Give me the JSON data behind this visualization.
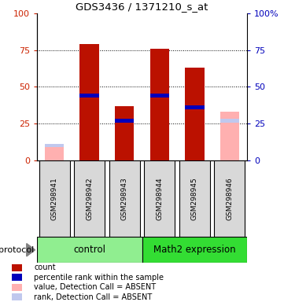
{
  "title": "GDS3436 / 1371210_s_at",
  "samples": [
    "GSM298941",
    "GSM298942",
    "GSM298943",
    "GSM298944",
    "GSM298945",
    "GSM298946"
  ],
  "count_values": [
    null,
    79,
    37,
    76,
    63,
    null
  ],
  "rank_values": [
    null,
    44,
    27,
    44,
    36,
    null
  ],
  "absent_value_values": [
    10,
    null,
    null,
    null,
    null,
    33
  ],
  "absent_rank_values": [
    10,
    null,
    null,
    null,
    null,
    27
  ],
  "group_control_color": "#90ee90",
  "group_math2_color": "#33dd33",
  "ylim": [
    0,
    100
  ],
  "yticks": [
    0,
    25,
    50,
    75,
    100
  ],
  "left_axis_color": "#cc2200",
  "right_axis_color": "#0000bb",
  "count_color": "#bb1100",
  "rank_color": "#0000bb",
  "absent_value_color": "#ffb0b0",
  "absent_rank_color": "#c0c8ee",
  "sample_box_color": "#d8d8d8",
  "legend_items": [
    {
      "color": "#bb1100",
      "label": "count"
    },
    {
      "color": "#0000bb",
      "label": "percentile rank within the sample"
    },
    {
      "color": "#ffb0b0",
      "label": "value, Detection Call = ABSENT"
    },
    {
      "color": "#c0c8ee",
      "label": "rank, Detection Call = ABSENT"
    }
  ]
}
